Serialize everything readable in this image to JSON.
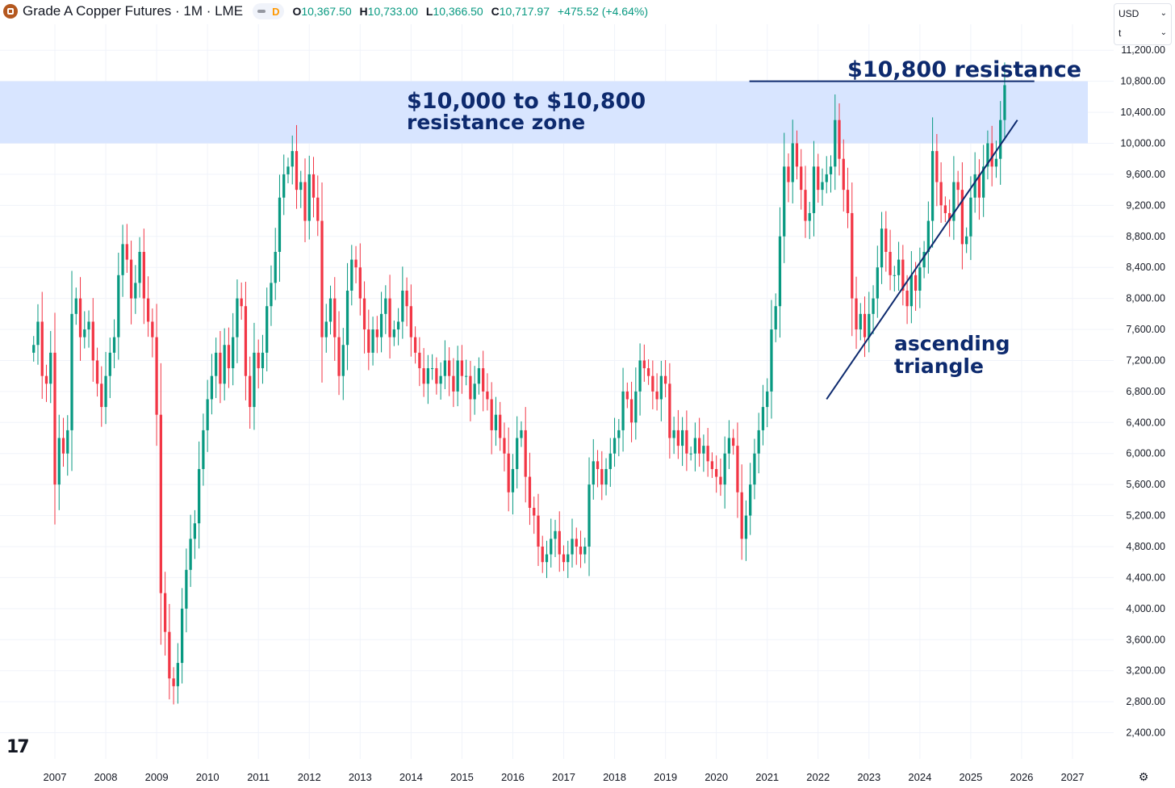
{
  "header": {
    "title": "Grade A Copper Futures · 1M · LME",
    "badge": "D",
    "open_label": "O",
    "open": "10,367.50",
    "high_label": "H",
    "high": "10,733.00",
    "low_label": "L",
    "low": "10,366.50",
    "close_label": "C",
    "close": "10,717.97",
    "change": "+475.52 (+4.64%)"
  },
  "currency": {
    "value": "USD",
    "unit": "t"
  },
  "annotations": {
    "zone_line1": "$10,000 to $10,800",
    "zone_line2": "resistance zone",
    "resistance": "$10,800 resistance",
    "triangle_line1": "ascending",
    "triangle_line2": "triangle"
  },
  "colors": {
    "up": "#089981",
    "down": "#f23645",
    "zone": "#d6e4ff",
    "annotation": "#0d2a6e"
  },
  "chart_data": {
    "type": "candlestick",
    "interval": "1M",
    "title": "Grade A Copper Futures · 1M · LME",
    "ylim": [
      2200,
      11300
    ],
    "y_ticks": [
      2400,
      2800,
      3200,
      3600,
      4000,
      4400,
      4800,
      5200,
      5600,
      6000,
      6400,
      6800,
      7200,
      7600,
      8000,
      8400,
      8800,
      9200,
      9600,
      10000,
      10400,
      10800,
      11200
    ],
    "y_tick_labels": [
      "2,400.00",
      "2,800.00",
      "3,200.00",
      "3,600.00",
      "4,000.00",
      "4,400.00",
      "4,800.00",
      "5,200.00",
      "5,600.00",
      "6,000.00",
      "6,400.00",
      "6,800.00",
      "7,200.00",
      "7,600.00",
      "8,000.00",
      "8,400.00",
      "8,800.00",
      "9,200.00",
      "9,600.00",
      "10,000.00",
      "10,400.00",
      "10,800.00",
      "11,200.00"
    ],
    "x_ticks": [
      2007,
      2008,
      2009,
      2010,
      2011,
      2012,
      2013,
      2014,
      2015,
      2016,
      2017,
      2018,
      2019,
      2020,
      2021,
      2022,
      2023,
      2024,
      2025,
      2026,
      2027
    ],
    "x_tick_labels": [
      "2007",
      "2008",
      "2009",
      "2010",
      "2011",
      "2012",
      "2013",
      "2014",
      "2015",
      "2016",
      "2017",
      "2018",
      "2019",
      "2020",
      "2021",
      "2022",
      "2023",
      "2024",
      "2025",
      "2026",
      "2027"
    ],
    "start": "2006-08",
    "closes": [
      7400,
      7700,
      7000,
      6900,
      7300,
      5600,
      6200,
      6000,
      6300,
      7800,
      8000,
      7500,
      7600,
      7700,
      7200,
      6900,
      6600,
      7000,
      7300,
      7500,
      8300,
      8700,
      8500,
      8000,
      8200,
      8600,
      8000,
      7700,
      7500,
      6500,
      4200,
      3700,
      3100,
      3000,
      3300,
      4000,
      4500,
      4900,
      5100,
      5800,
      6300,
      6700,
      7000,
      7300,
      6900,
      7400,
      7100,
      7500,
      8000,
      7900,
      7000,
      6600,
      7300,
      7100,
      7300,
      7900,
      8200,
      8600,
      9300,
      9600,
      9700,
      9900,
      9400,
      9500,
      9000,
      9600,
      9300,
      9000,
      7500,
      7700,
      8000,
      7500,
      7000,
      7400,
      8100,
      8500,
      8400,
      8000,
      7600,
      7300,
      7600,
      7500,
      7800,
      8000,
      7500,
      7600,
      7700,
      8100,
      7900,
      7500,
      7300,
      7100,
      6900,
      7100,
      7100,
      6900,
      7000,
      7200,
      7000,
      6800,
      7200,
      7000,
      7000,
      6700,
      6900,
      7100,
      6800,
      6700,
      6300,
      6500,
      6200,
      6000,
      5500,
      5800,
      6200,
      6300,
      5700,
      5300,
      5200,
      4800,
      4600,
      4700,
      4900,
      5000,
      4700,
      4600,
      4700,
      4900,
      4800,
      4700,
      4800,
      5600,
      5900,
      5800,
      5600,
      5800,
      6000,
      6200,
      6300,
      6800,
      6700,
      6400,
      6800,
      7200,
      7100,
      7000,
      6800,
      6700,
      7000,
      6900,
      6200,
      6300,
      6100,
      6300,
      6000,
      6000,
      6200,
      6000,
      6100,
      5900,
      5800,
      5700,
      5600,
      6000,
      6200,
      6100,
      5500,
      4900,
      5200,
      5600,
      6000,
      6300,
      6600,
      6800,
      7600,
      7900,
      8800,
      9700,
      9500,
      10000,
      9700,
      9400,
      9000,
      9100,
      9700,
      9400,
      9500,
      9600,
      9700,
      10300,
      9800,
      9400,
      9100,
      8000,
      7600,
      7800,
      7500,
      7800,
      8000,
      8400,
      8900,
      8600,
      8300,
      8300,
      8500,
      8100,
      7900,
      8300,
      8100,
      8400,
      8600,
      9000,
      9900,
      9500,
      9200,
      9100,
      9000,
      9500,
      9400,
      8700,
      8800,
      9300,
      9600,
      9300,
      9700,
      10000,
      9700,
      9800,
      10300,
      10750
    ],
    "annotations": [
      "$10,000 to $10,800",
      "resistance zone",
      "$10,800 resistance",
      "ascending",
      "triangle"
    ],
    "resistance_zone": [
      10000,
      10800
    ],
    "resistance_level": 10800,
    "trendline": {
      "from": [
        "2022-03",
        6700
      ],
      "to": [
        "2025-12",
        10300
      ]
    },
    "legend": "none",
    "grid": true
  }
}
